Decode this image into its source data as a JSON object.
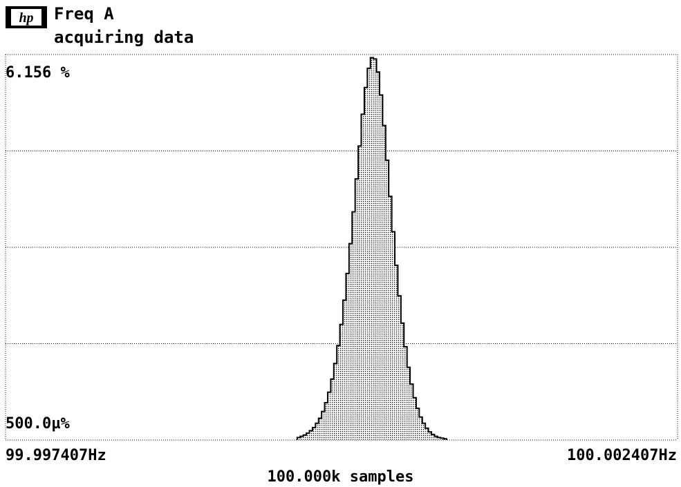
{
  "header": {
    "brand": "hp",
    "title": "Freq A",
    "status": "acquiring data"
  },
  "axes": {
    "y_max_label": "6.156 %",
    "y_min_label": "500.0µ%",
    "x_min_label": "99.997407Hz",
    "x_max_label": "100.002407Hz",
    "samples_label": "100.000k samples"
  },
  "chart_data": {
    "type": "bar",
    "ylim_label": [
      "500.0µ%",
      "6.156 %"
    ],
    "ylim": [
      0,
      6.156
    ],
    "xlim": [
      99.997407,
      100.002407
    ],
    "grid": true,
    "bins_start": 99.999577,
    "bin_width": 2.27e-05,
    "values": [
      0.04,
      0.06,
      0.08,
      0.11,
      0.15,
      0.2,
      0.27,
      0.35,
      0.46,
      0.6,
      0.77,
      0.98,
      1.23,
      1.52,
      1.86,
      2.25,
      2.68,
      3.16,
      3.67,
      4.2,
      4.73,
      5.24,
      5.67,
      5.98,
      6.15,
      6.13,
      5.92,
      5.55,
      5.06,
      4.5,
      3.92,
      3.35,
      2.81,
      2.32,
      1.88,
      1.5,
      1.17,
      0.9,
      0.68,
      0.51,
      0.37,
      0.27,
      0.19,
      0.13,
      0.09,
      0.06,
      0.04,
      0.03,
      0.02
    ]
  }
}
